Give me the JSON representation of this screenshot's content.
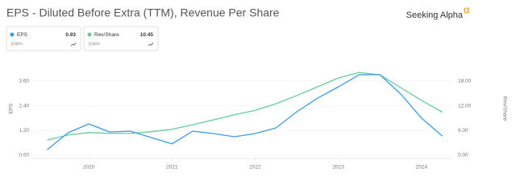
{
  "brand": {
    "name": "Seeking Alpha",
    "symbol": "α"
  },
  "chart_data": {
    "type": "line",
    "title": "EPS - Diluted Before Extra (TTM), Revenue Per Share",
    "y_label": "EPS",
    "y2_label": "Rev/Share",
    "x": [
      2019.5,
      2019.75,
      2020,
      2020.25,
      2020.5,
      2020.75,
      2021,
      2021.25,
      2021.5,
      2021.75,
      2022,
      2022.25,
      2022.5,
      2022.75,
      2023,
      2023.25,
      2023.5,
      2023.75,
      2024,
      2024.25
    ],
    "xlim": [
      2019.32,
      2024.36
    ],
    "xticks": [
      2020,
      2021,
      2022,
      2023,
      2024
    ],
    "ylim": [
      0,
      4.2
    ],
    "yticks": [
      {
        "value": 0,
        "label": "0.00"
      },
      {
        "value": 1.2,
        "label": "1.20"
      },
      {
        "value": 2.4,
        "label": "2.40"
      },
      {
        "value": 3.6,
        "label": "3.60"
      }
    ],
    "y2lim": [
      0,
      21
    ],
    "y2ticks": [
      {
        "value": 0,
        "label": "0.00"
      },
      {
        "value": 6,
        "label": "6.00"
      },
      {
        "value": 12,
        "label": "12.00"
      },
      {
        "value": 18,
        "label": "18.00"
      }
    ],
    "grid": true,
    "series": [
      {
        "name": "EPS",
        "ticker": "ENPH",
        "color": "#3d9be9",
        "values": [
          0.27,
          1.09,
          1.52,
          1.13,
          1.17,
          0.86,
          0.55,
          1.17,
          1.05,
          0.9,
          1.05,
          1.33,
          2.11,
          2.77,
          3.32,
          3.91,
          3.91,
          2.97,
          1.8,
          0.93
        ]
      },
      {
        "name": "Rev/Share",
        "ticker": "ENPH",
        "color": "#66cc99",
        "axis": "y2",
        "values": [
          3.7,
          4.9,
          5.5,
          5.3,
          5.3,
          5.7,
          6.3,
          7.4,
          8.6,
          9.8,
          10.9,
          12.5,
          14.5,
          16.6,
          18.75,
          20.1,
          19.5,
          16.4,
          13.3,
          10.45
        ]
      }
    ]
  }
}
